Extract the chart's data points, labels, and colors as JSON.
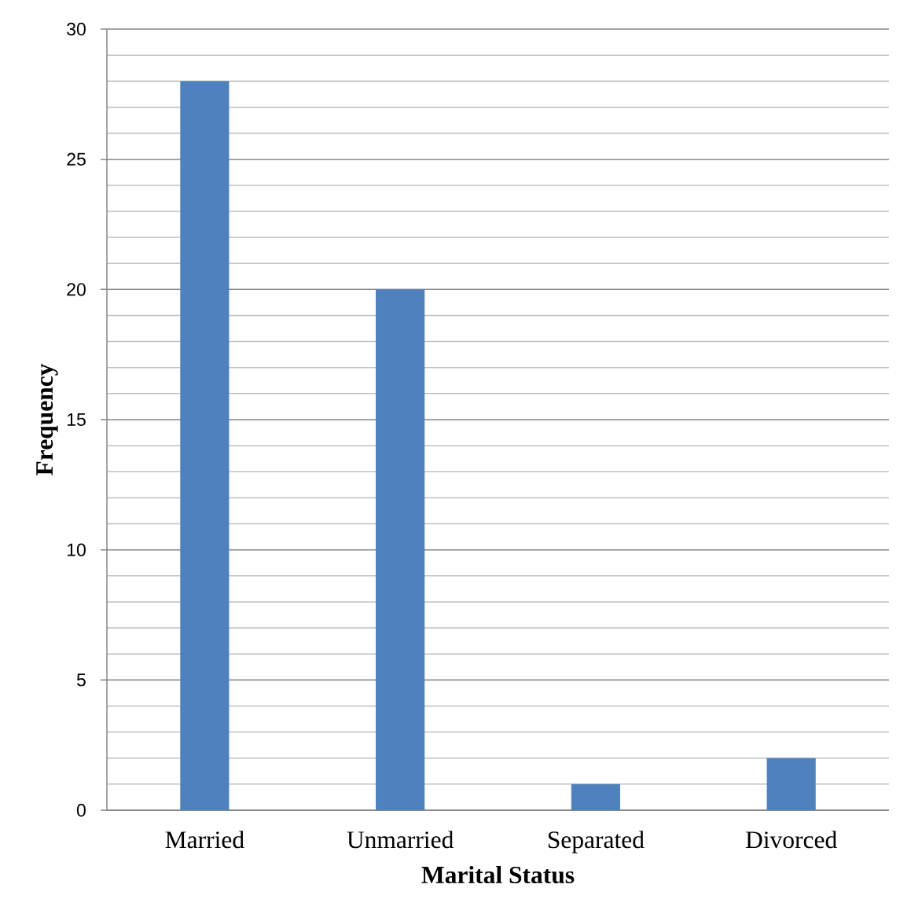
{
  "chart_data": {
    "type": "bar",
    "xlabel": "Marital Status",
    "ylabel": "Frequency",
    "categories": [
      "Married",
      "Unmarried",
      "Separated",
      "Divorced"
    ],
    "values": [
      28,
      20,
      1,
      2
    ],
    "color": "#4f81bd",
    "ylim": [
      0,
      30
    ],
    "yticks": [
      0,
      {
        "value": 1,
        "label": null
      },
      {
        "value": 2,
        "label": null
      },
      {
        "value": 3,
        "label": null
      },
      {
        "value": 4,
        "label": null
      },
      5,
      {
        "value": 6,
        "label": null
      },
      {
        "value": 7,
        "label": null
      },
      {
        "value": 8,
        "label": null
      },
      {
        "value": 9,
        "label": null
      },
      10,
      {
        "value": 11,
        "label": null
      },
      {
        "value": 12,
        "label": null
      },
      {
        "value": 13,
        "label": null
      },
      {
        "value": 14,
        "label": null
      },
      15,
      {
        "value": 16,
        "label": null
      },
      {
        "value": 17,
        "label": null
      },
      {
        "value": 18,
        "label": null
      },
      {
        "value": 19,
        "label": null
      },
      20,
      {
        "value": 21,
        "label": null
      },
      {
        "value": 22,
        "label": null
      },
      {
        "value": 23,
        "label": null
      },
      {
        "value": 24,
        "label": null
      },
      25,
      {
        "value": 26,
        "label": null
      },
      {
        "value": 27,
        "label": null
      },
      {
        "value": 28,
        "label": null
      },
      {
        "value": 29,
        "label": null
      },
      30
    ],
    "grid": "y"
  }
}
